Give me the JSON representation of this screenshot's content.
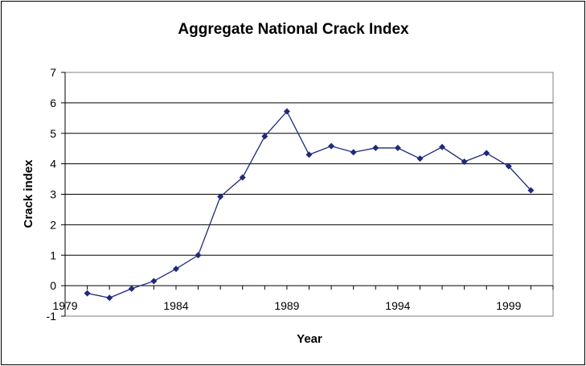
{
  "chart_data": {
    "type": "line",
    "title": "Aggregate National Crack Index",
    "xlabel": "Year",
    "ylabel": "Crack index",
    "xlim": [
      1979,
      2001
    ],
    "ylim": [
      -1,
      7
    ],
    "x_ticks": [
      1979,
      1984,
      1989,
      1994,
      1999
    ],
    "y_ticks": [
      -1,
      0,
      1,
      2,
      3,
      4,
      5,
      6,
      7
    ],
    "grid": "horizontal",
    "legend": "none",
    "series": [
      {
        "color": "#1f2a7a",
        "x": [
          1980,
          1981,
          1982,
          1983,
          1984,
          1985,
          1986,
          1987,
          1988,
          1989,
          1990,
          1991,
          1992,
          1993,
          1994,
          1995,
          1996,
          1997,
          1998,
          1999,
          2000
        ],
        "y": [
          -0.25,
          -0.4,
          -0.1,
          0.15,
          0.55,
          1.0,
          2.92,
          3.55,
          4.9,
          5.72,
          4.3,
          4.58,
          4.38,
          4.52,
          4.52,
          4.17,
          4.55,
          4.07,
          4.35,
          3.92,
          3.13
        ]
      }
    ]
  }
}
